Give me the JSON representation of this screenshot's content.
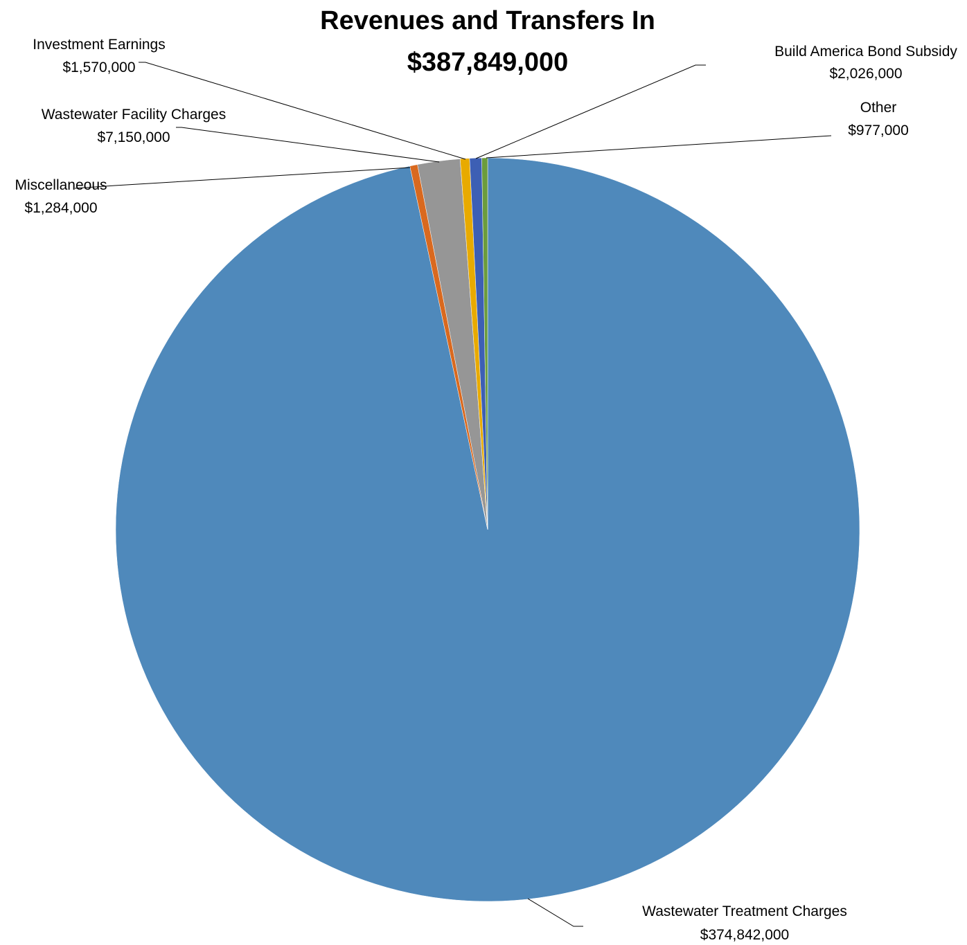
{
  "chart_data": {
    "type": "pie",
    "title": "Revenues and Transfers In",
    "subtitle": "$387,849,000",
    "slices": [
      {
        "label": "Wastewater Treatment Charges",
        "value": 374842000,
        "value_label": "$374,842,000",
        "color": "#4f89bb"
      },
      {
        "label": "Miscellaneous",
        "value": 1284000,
        "value_label": "$1,284,000",
        "color": "#d9691f"
      },
      {
        "label": "Wastewater Facility Charges",
        "value": 7150000,
        "value_label": "$7,150,000",
        "color": "#969696"
      },
      {
        "label": "Investment Earnings",
        "value": 1570000,
        "value_label": "$1,570,000",
        "color": "#e8aa00"
      },
      {
        "label": "Build America Bond Subsidy",
        "value": 2026000,
        "value_label": "$2,026,000",
        "color": "#3d5fb4"
      },
      {
        "label": "Other",
        "value": 977000,
        "value_label": "$977,000",
        "color": "#6b9c3c"
      }
    ],
    "legend": "none",
    "data_labels": "outside with leader lines"
  }
}
